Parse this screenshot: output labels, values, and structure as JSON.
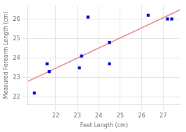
{
  "chart_data": {
    "type": "scatter",
    "xlabel": "Feet Length (cm)",
    "ylabel": "Measured Forearm Length (cm)",
    "series": [
      {
        "type": "scatter",
        "color": "#0000cc",
        "marker": "square",
        "x": [
          21.0,
          21.6,
          21.7,
          23.1,
          23.2,
          23.5,
          24.5,
          24.5,
          26.3,
          27.2,
          27.4
        ],
        "values": [
          22.2,
          23.7,
          23.3,
          23.5,
          24.1,
          26.1,
          24.8,
          23.7,
          26.2,
          26.0,
          26.0
        ]
      },
      {
        "type": "line",
        "color": "#e08080",
        "line_style": "solid",
        "x": [
          20.7,
          27.8
        ],
        "values": [
          22.7996,
          26.4776
        ]
      }
    ],
    "xlim": [
      20.7,
      27.8
    ],
    "ylim": [
      21.6,
      26.7
    ],
    "xticks": [
      22,
      23,
      24,
      25,
      26,
      27
    ],
    "yticks": [
      22,
      23,
      24,
      25,
      26
    ],
    "grid": true
  }
}
